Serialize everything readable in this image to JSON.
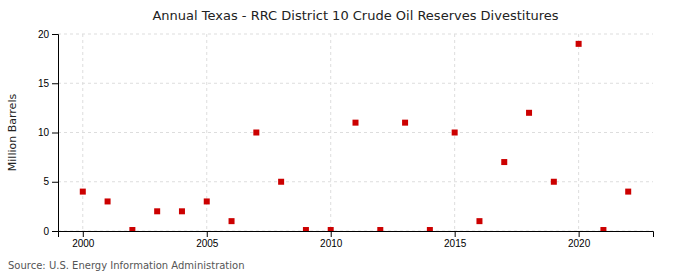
{
  "chart_data": {
    "type": "scatter",
    "title": "Annual Texas - RRC District 10 Crude Oil Reserves Divestitures",
    "ylabel": "Million Barrels",
    "annotations": [
      "Source: U.S. Energy Information Administration"
    ],
    "x": [
      2000,
      2001,
      2002,
      2003,
      2004,
      2005,
      2006,
      2007,
      2008,
      2009,
      2010,
      2011,
      2012,
      2013,
      2014,
      2015,
      2016,
      2017,
      2018,
      2019,
      2020,
      2021,
      2022
    ],
    "values": [
      4.0,
      3.0,
      0.1,
      2.0,
      2.0,
      3.0,
      1.0,
      10.0,
      5.0,
      0.1,
      0.1,
      11.0,
      0.1,
      11.0,
      0.1,
      10.0,
      1.0,
      7.0,
      12.0,
      5.0,
      19.0,
      0.1,
      4.0
    ],
    "color": "#cc0000",
    "marker": "square",
    "xlim": [
      1999,
      2023
    ],
    "xticks": [
      2000,
      2005,
      2010,
      2015,
      2020
    ],
    "ylim": [
      0,
      20
    ],
    "yticks": [
      0,
      5,
      10,
      15,
      20
    ],
    "grid": true
  }
}
